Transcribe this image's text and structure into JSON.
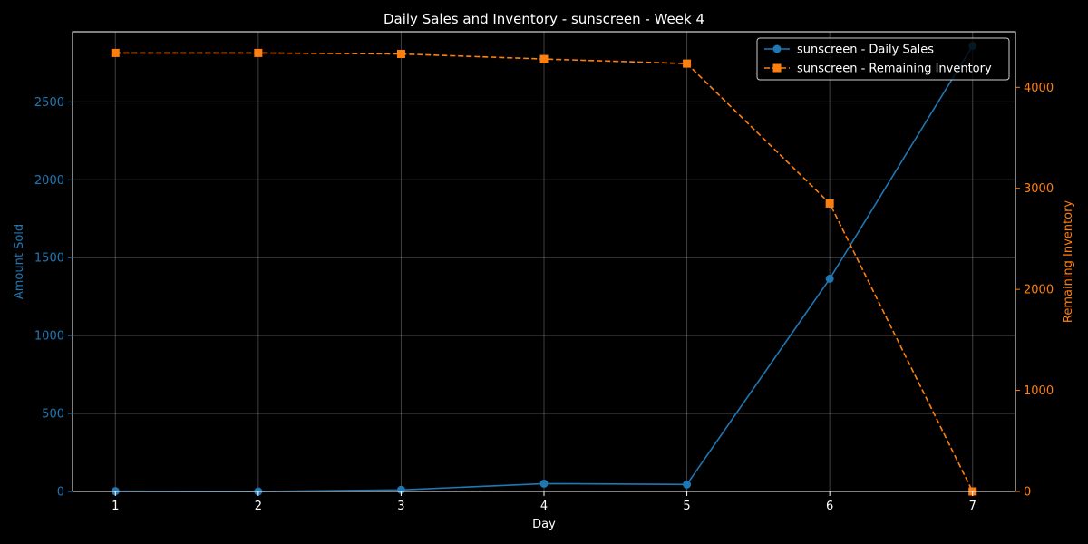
{
  "chart_data": {
    "type": "line",
    "title": "Daily Sales and Inventory - sunscreen - Week 4",
    "xlabel": "Day",
    "ylabel": "Amount Sold",
    "y2label": "Remaining Inventory",
    "x": [
      1,
      2,
      3,
      4,
      5,
      6,
      7
    ],
    "xlim": [
      0.7,
      7.3
    ],
    "ylim": [
      0,
      2950
    ],
    "y2lim": [
      0,
      4550
    ],
    "yticks": [
      0,
      500,
      1000,
      1500,
      2000,
      2500
    ],
    "y2ticks": [
      0,
      1000,
      2000,
      3000,
      4000
    ],
    "grid": true,
    "legend_position": "top-right",
    "series": [
      {
        "name": "sunscreen - Daily Sales",
        "axis": "left",
        "color": "#1f77b4",
        "marker": "circle",
        "linestyle": "solid",
        "values": [
          2,
          0,
          10,
          50,
          45,
          1365,
          2860
        ]
      },
      {
        "name": "sunscreen - Remaining Inventory",
        "axis": "right",
        "color": "#ff7f0e",
        "marker": "square",
        "linestyle": "dashed",
        "values": [
          4340,
          4340,
          4330,
          4280,
          4235,
          2850,
          0
        ]
      }
    ]
  }
}
